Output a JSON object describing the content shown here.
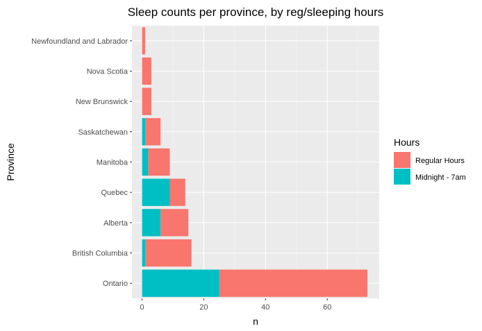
{
  "chart_data": {
    "type": "bar",
    "orientation": "horizontal",
    "stacked": true,
    "title": "Sleep counts per province, by reg/sleeping hours",
    "xlabel": "n",
    "ylabel": "Province",
    "xlim": [
      0,
      73
    ],
    "xticks": [
      0,
      20,
      40,
      60
    ],
    "categories": [
      "Ontario",
      "British Columbia",
      "Alberta",
      "Quebec",
      "Manitoba",
      "Saskatchewan",
      "New Brunswick",
      "Nova Scotia",
      "Newfoundland and Labrador"
    ],
    "series": [
      {
        "name": "Midnight - 7am",
        "color": "#00BFC4",
        "values": [
          25,
          1,
          6,
          9,
          2,
          1,
          0,
          0,
          0
        ]
      },
      {
        "name": "Regular Hours",
        "color": "#F8766D",
        "values": [
          48,
          15,
          9,
          5,
          7,
          5,
          3,
          3,
          1
        ]
      }
    ],
    "legend": {
      "title": "Hours",
      "placement": "right",
      "entries": [
        "Regular Hours",
        "Midnight - 7am"
      ]
    },
    "grid": true,
    "panel_background": "#EBEBEB"
  }
}
